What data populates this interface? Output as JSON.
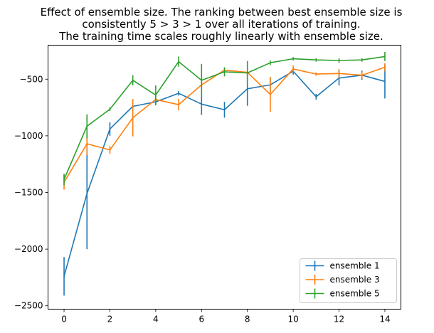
{
  "chart_data": {
    "type": "line",
    "title": [
      "Effect of ensemble size. The ranking between best ensemble size is",
      "consistently 5 > 3 > 1 over all iterations of training.",
      "The training time scales roughly linearly with ensemble size."
    ],
    "xlabel": "",
    "ylabel": "",
    "x": [
      0,
      1,
      2,
      3,
      4,
      5,
      6,
      7,
      8,
      9,
      10,
      11,
      12,
      13,
      14
    ],
    "xlim": [
      -0.7,
      14.7
    ],
    "ylim": [
      -2530,
      -200
    ],
    "xticks": [
      0,
      2,
      4,
      6,
      8,
      10,
      12,
      14
    ],
    "yticks": [
      -2500,
      -2000,
      -1500,
      -1000,
      -500
    ],
    "ytick_labels": [
      "−2500",
      "−2000",
      "−1500",
      "−1000",
      "−500"
    ],
    "grid": false,
    "legend_position": "lower-right",
    "series": [
      {
        "name": "ensemble 1",
        "color": "#1f77b4",
        "values": [
          -2240,
          -1510,
          -940,
          -740,
          -700,
          -625,
          -720,
          -770,
          -585,
          -550,
          -430,
          -655,
          -490,
          -465,
          -520
        ],
        "errors": [
          170,
          490,
          60,
          40,
          30,
          20,
          95,
          70,
          150,
          65,
          30,
          25,
          65,
          40,
          150
        ]
      },
      {
        "name": "ensemble 3",
        "color": "#ff7f0e",
        "values": [
          -1410,
          -1070,
          -1125,
          -840,
          -680,
          -725,
          -550,
          -420,
          -440,
          -635,
          -410,
          -455,
          -450,
          -465,
          -395
        ],
        "errors": [
          65,
          100,
          35,
          165,
          25,
          50,
          60,
          25,
          20,
          155,
          30,
          15,
          40,
          30,
          35
        ]
      },
      {
        "name": "ensemble 5",
        "color": "#2ca02c",
        "values": [
          -1385,
          -915,
          -765,
          -510,
          -640,
          -345,
          -510,
          -435,
          -445,
          -355,
          -320,
          -330,
          -335,
          -330,
          -300
        ],
        "errors": [
          50,
          105,
          15,
          45,
          85,
          45,
          145,
          40,
          105,
          20,
          15,
          15,
          20,
          15,
          40
        ]
      }
    ]
  }
}
